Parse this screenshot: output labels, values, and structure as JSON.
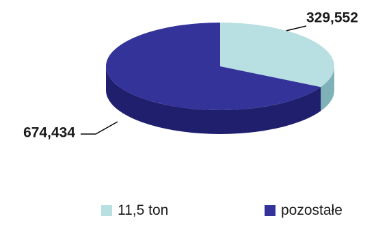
{
  "chart_data": {
    "type": "pie",
    "style": "3d",
    "slices": [
      {
        "name": "11,5 ton",
        "value": 329552,
        "label": "329,552",
        "color": "#b8dfe2",
        "side_color": "#7fb1b8"
      },
      {
        "name": "pozostałe",
        "value": 674434,
        "label": "674,434",
        "color": "#333399",
        "side_color": "#1f1f6e"
      }
    ],
    "legend_placement": "bottom"
  },
  "legend": {
    "items": [
      {
        "label": "11,5 ton",
        "color": "#b8dfe2"
      },
      {
        "label": "pozostałe",
        "color": "#333399"
      }
    ]
  }
}
